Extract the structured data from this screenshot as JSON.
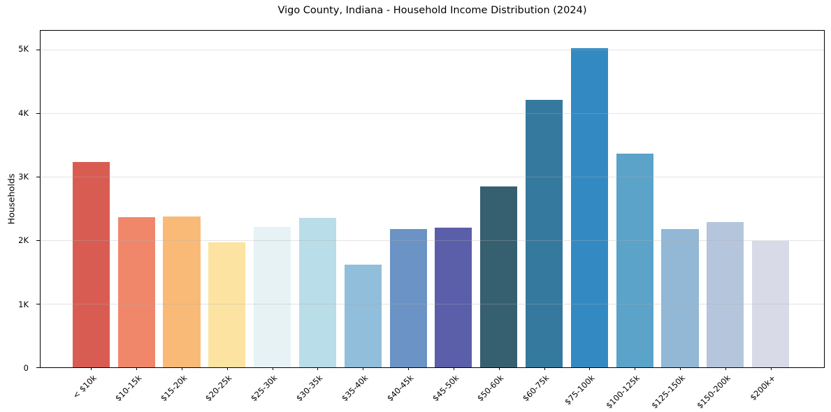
{
  "chart_data": {
    "type": "bar",
    "title": "Vigo County, Indiana - Household Income Distribution (2024)",
    "xlabel": "",
    "ylabel": "Households",
    "categories": [
      "< $10k",
      "$10-15k",
      "$15-20k",
      "$20-25k",
      "$25-30k",
      "$30-35k",
      "$35-40k",
      "$40-45k",
      "$45-50k",
      "$50-60k",
      "$60-75k",
      "$75-100k",
      "$100-125k",
      "$125-150k",
      "$150-200k",
      "$200k+"
    ],
    "values": [
      3230,
      2360,
      2380,
      1970,
      2210,
      2350,
      1620,
      2180,
      2200,
      2850,
      4210,
      5030,
      3360,
      2180,
      2290,
      1990
    ],
    "bar_colors": [
      "#d95c52",
      "#f0876b",
      "#f9ba77",
      "#fde3a2",
      "#e7f2f5",
      "#b9dde9",
      "#90bedb",
      "#6b93c5",
      "#5b5ea9",
      "#366070",
      "#35799e",
      "#338ac2",
      "#5ba3c8",
      "#92b8d6",
      "#b5c6dc",
      "#d8dae8"
    ],
    "ylim": [
      0,
      5300
    ],
    "yticks": [
      {
        "value": 0,
        "label": "0"
      },
      {
        "value": 1000,
        "label": "1K"
      },
      {
        "value": 2000,
        "label": "2K"
      },
      {
        "value": 3000,
        "label": "3K"
      },
      {
        "value": 4000,
        "label": "4K"
      },
      {
        "value": 5000,
        "label": "5K"
      }
    ],
    "grid": "horizontal",
    "legend": "none"
  },
  "colors": {
    "background": "#ffffff",
    "axis": "#000000",
    "grid": "#b0b0b0",
    "text": "#000000"
  }
}
